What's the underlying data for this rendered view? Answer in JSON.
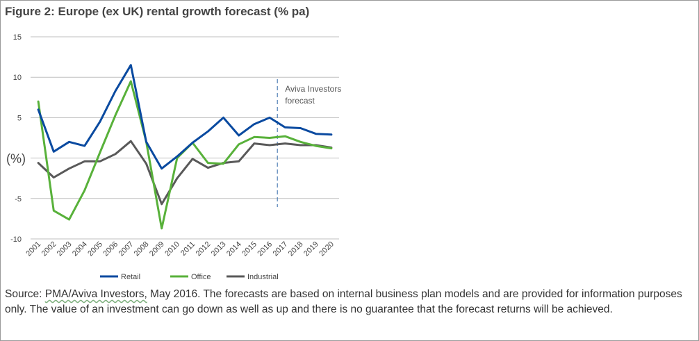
{
  "figure": {
    "title": "Figure 2: Europe (ex UK) rental growth forecast (% pa)"
  },
  "chart_data": {
    "type": "line",
    "title": "Figure 2: Europe (ex UK) rental growth forecast (% pa)",
    "xlabel": "",
    "ylabel": "(%)",
    "ylim": [
      -10,
      15
    ],
    "yticks": [
      "15",
      "10",
      "5",
      "",
      "-5",
      "-10"
    ],
    "yticks_values": [
      15,
      10,
      5,
      0,
      -5,
      -10
    ],
    "grid": true,
    "legend": "bottom",
    "categories": [
      "2001",
      "2002",
      "2003",
      "2004",
      "2005",
      "2006",
      "2007",
      "2008",
      "2009",
      "2010",
      "2011",
      "2012",
      "2013",
      "2014",
      "2015",
      "2016",
      "2017",
      "2018",
      "2019",
      "2020"
    ],
    "series": [
      {
        "name": "Retail",
        "color": "#0a4aa0",
        "values": [
          6.0,
          0.8,
          2.0,
          1.5,
          4.5,
          8.3,
          11.5,
          2.0,
          -1.3,
          0.2,
          1.9,
          3.3,
          5.0,
          2.8,
          4.2,
          5.0,
          3.8,
          3.7,
          3.0,
          2.9
        ]
      },
      {
        "name": "Office",
        "color": "#58b13a",
        "values": [
          7.0,
          -6.5,
          -7.6,
          -4.0,
          0.7,
          5.3,
          9.5,
          2.0,
          -8.7,
          0.0,
          1.9,
          -0.6,
          -0.7,
          1.7,
          2.6,
          2.5,
          2.7,
          2.0,
          1.5,
          1.2
        ]
      },
      {
        "name": "Industrial",
        "color": "#595959",
        "values": [
          -0.6,
          -2.4,
          -1.3,
          -0.4,
          -0.4,
          0.5,
          2.1,
          -0.7,
          -5.7,
          -2.5,
          -0.1,
          -1.2,
          -0.6,
          -0.4,
          1.8,
          1.6,
          1.8,
          1.6,
          1.6,
          1.3
        ]
      }
    ],
    "annotation": {
      "text_line1": "Aviva Investors",
      "text_line2": "forecast",
      "divider_between": [
        "2016",
        "2017"
      ]
    }
  },
  "source": {
    "prefix": "Source: ",
    "link": "PMA/Aviva Investors,",
    "rest": " May 2016. The forecasts are based on internal business plan models and are provided for information purposes only. The value of an investment can go down as well as up and there is no guarantee that the forecast returns will be achieved."
  }
}
